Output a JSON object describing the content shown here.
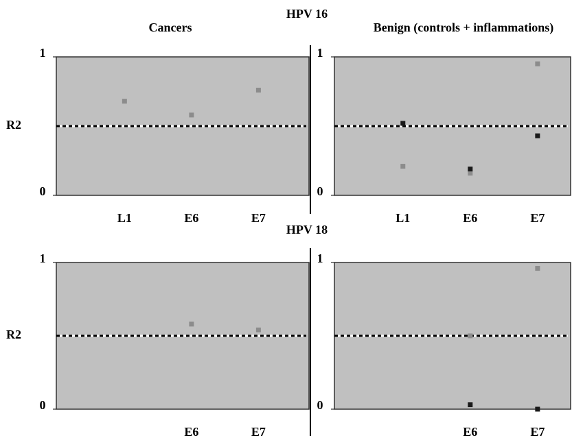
{
  "row_labels": [
    "HPV 16",
    "HPV 18"
  ],
  "column_labels": [
    "Cancers",
    "Benign (controls + inflammations)"
  ],
  "chart_data": [
    {
      "type": "scatter",
      "y_label": "R2",
      "categories": [
        "L1",
        "E6",
        "E7"
      ],
      "series": [
        {
          "color": "#8c8c8c",
          "values": [
            0.68,
            0.58,
            0.76
          ]
        }
      ],
      "reference_line": 0.5,
      "ylim": [
        0,
        1
      ],
      "yticks": [
        0,
        1
      ]
    },
    {
      "type": "scatter",
      "categories": [
        "L1",
        "E6",
        "E7"
      ],
      "series": [
        {
          "color": "#8c8c8c",
          "values": [
            0.21,
            0.16,
            0.95
          ]
        },
        {
          "color": "#1a1a1a",
          "values": [
            0.52,
            0.19,
            0.43
          ]
        }
      ],
      "reference_line": 0.5,
      "ylim": [
        0,
        1
      ],
      "yticks": [
        0,
        1
      ]
    },
    {
      "type": "scatter",
      "y_label": "R2",
      "categories": [
        null,
        "E6",
        "E7"
      ],
      "series": [
        {
          "color": "#8c8c8c",
          "values": [
            null,
            0.58,
            0.54
          ]
        }
      ],
      "reference_line": 0.5,
      "ylim": [
        0,
        1
      ],
      "yticks": [
        0,
        1
      ]
    },
    {
      "type": "scatter",
      "categories": [
        null,
        "E6",
        "E7"
      ],
      "series": [
        {
          "color": "#8c8c8c",
          "values": [
            null,
            0.5,
            0.96
          ]
        },
        {
          "color": "#1a1a1a",
          "values": [
            null,
            0.03,
            0.0
          ]
        }
      ],
      "reference_line": 0.5,
      "ylim": [
        0,
        1
      ],
      "yticks": [
        0,
        1
      ]
    }
  ]
}
